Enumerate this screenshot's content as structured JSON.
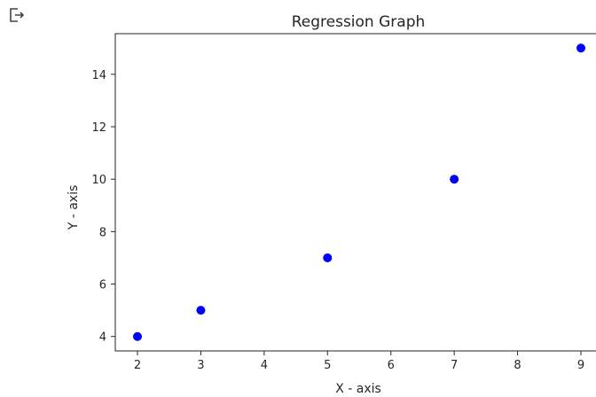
{
  "output_icon": "output-redirect-icon",
  "chart_data": {
    "type": "scatter",
    "title": "Regression Graph",
    "xlabel": "X - axis",
    "ylabel": "Y - axis",
    "x": [
      2,
      3,
      5,
      7,
      9
    ],
    "y": [
      4,
      5,
      7,
      10,
      15
    ],
    "xlim": [
      1.65,
      9.35
    ],
    "ylim": [
      3.45,
      15.55
    ],
    "xticks": [
      2,
      3,
      4,
      5,
      6,
      7,
      8,
      9
    ],
    "yticks": [
      4,
      6,
      8,
      10,
      12,
      14
    ],
    "grid": false,
    "marker_color": "#0000ff",
    "axis_color": "#262626"
  }
}
